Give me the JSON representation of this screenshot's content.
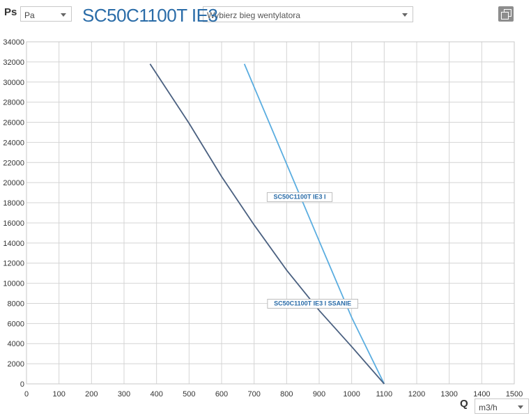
{
  "header": {
    "ps_label": "Ps",
    "unit_select_value": "Pa",
    "title": "SC50C1100T IE3",
    "fan_select_placeholder": "Wybierz bieg wentylatora"
  },
  "footer": {
    "q_label": "Q",
    "flow_unit_value": "m3/h"
  },
  "icons": {
    "copy": "copy-icon",
    "dropdown": "chevron-down-icon"
  },
  "chart_data": {
    "type": "line",
    "xlabel": "Q",
    "ylabel": "Ps",
    "xlim": [
      0,
      1500
    ],
    "ylim": [
      0,
      34000
    ],
    "x_ticks": [
      0,
      100,
      200,
      300,
      400,
      500,
      600,
      700,
      800,
      900,
      1000,
      1100,
      1200,
      1300,
      1400,
      1500
    ],
    "y_ticks": [
      0,
      2000,
      4000,
      6000,
      8000,
      10000,
      12000,
      14000,
      16000,
      18000,
      20000,
      22000,
      24000,
      26000,
      28000,
      30000,
      32000,
      34000
    ],
    "grid": true,
    "series": [
      {
        "name": "SC50C1100T IE3 I",
        "color": "#5aade0",
        "points": [
          [
            670,
            31800
          ],
          [
            900,
            14200
          ],
          [
            1000,
            6600
          ],
          [
            1100,
            0
          ]
        ],
        "label_anchor": [
          840,
          18600
        ]
      },
      {
        "name": "SC50C1100T IE3 I SSANIE",
        "color": "#4a6080",
        "points": [
          [
            380,
            31800
          ],
          [
            500,
            25900
          ],
          [
            600,
            20600
          ],
          [
            700,
            15800
          ],
          [
            800,
            11300
          ],
          [
            900,
            7300
          ],
          [
            1000,
            3700
          ],
          [
            1100,
            0
          ]
        ],
        "label_anchor": [
          880,
          8000
        ]
      }
    ]
  }
}
